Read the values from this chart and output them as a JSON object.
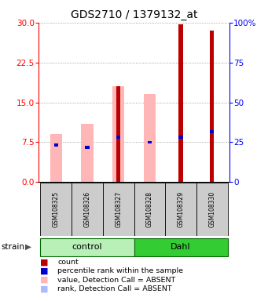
{
  "title": "GDS2710 / 1379132_at",
  "samples": [
    "GSM108325",
    "GSM108326",
    "GSM108327",
    "GSM108328",
    "GSM108329",
    "GSM108330"
  ],
  "ylim_left": [
    0,
    30
  ],
  "ylim_right": [
    0,
    100
  ],
  "yticks_left": [
    0,
    7.5,
    15,
    22.5,
    30
  ],
  "yticks_right": [
    0,
    25,
    50,
    75,
    100
  ],
  "red_bars": [
    0,
    0,
    18.0,
    0,
    29.7,
    28.5
  ],
  "pink_bars": [
    9.0,
    11.0,
    18.0,
    16.5,
    29.7,
    28.5
  ],
  "blue_y": [
    7.0,
    6.5,
    8.5,
    7.5,
    8.5,
    9.5
  ],
  "light_blue_y": [
    7.0,
    6.5,
    0,
    7.5,
    0,
    0
  ],
  "has_red": [
    false,
    false,
    true,
    false,
    true,
    true
  ],
  "has_pink": [
    true,
    true,
    true,
    true,
    false,
    false
  ],
  "has_light_blue": [
    true,
    true,
    false,
    true,
    false,
    false
  ],
  "red_color": "#bb0000",
  "pink_color": "#ffb6b6",
  "blue_color": "#0000cc",
  "light_blue_color": "#aabbff",
  "control_green": "#b8f0b8",
  "dahl_green": "#33cc33",
  "gray_box": "#cccccc",
  "grid_color": "#888888"
}
